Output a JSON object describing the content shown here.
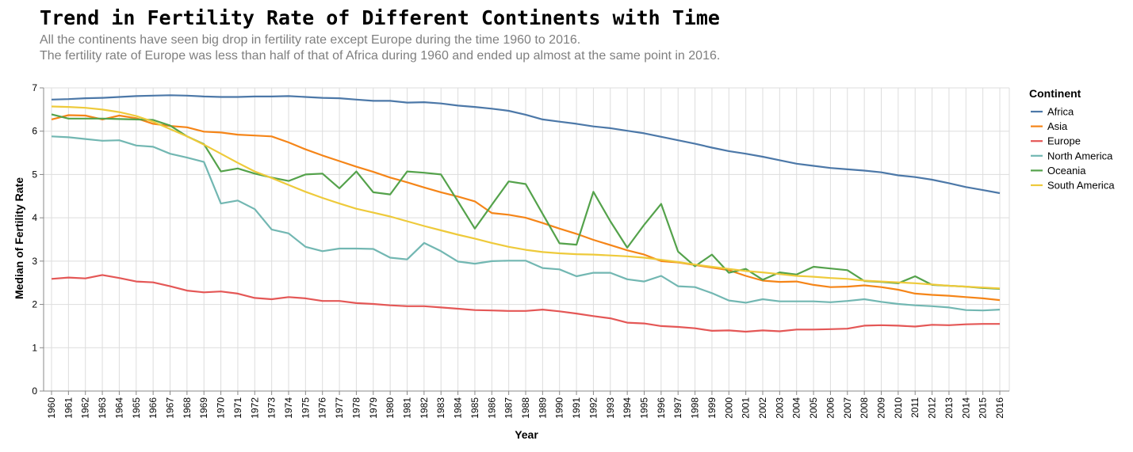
{
  "chart_data": {
    "type": "line",
    "title": "Trend in Fertility Rate of Different Continents with Time",
    "subtitle": [
      "All the continents have seen big drop in fertility rate except Europe during the time 1960 to 2016.",
      "The fertility rate of Europe was less than half of that of Africa during 1960 and ended up almost at the same point in 2016."
    ],
    "xlabel": "Year",
    "ylabel": "Median of Fertility Rate",
    "ylim": [
      0,
      7
    ],
    "yticks": [
      0,
      1,
      2,
      3,
      4,
      5,
      6,
      7
    ],
    "grid": true,
    "legend": {
      "title": "Continent",
      "position": "right"
    },
    "x": [
      1960,
      1961,
      1962,
      1963,
      1964,
      1965,
      1966,
      1967,
      1968,
      1969,
      1970,
      1971,
      1972,
      1973,
      1974,
      1975,
      1976,
      1977,
      1978,
      1979,
      1980,
      1981,
      1982,
      1983,
      1984,
      1985,
      1986,
      1987,
      1988,
      1989,
      1990,
      1991,
      1992,
      1993,
      1994,
      1995,
      1996,
      1997,
      1998,
      1999,
      2000,
      2001,
      2002,
      2003,
      2004,
      2005,
      2006,
      2007,
      2008,
      2009,
      2010,
      2011,
      2012,
      2013,
      2014,
      2015,
      2016
    ],
    "series": [
      {
        "name": "Africa",
        "color": "#4c78a8",
        "values": [
          6.73,
          6.74,
          6.76,
          6.77,
          6.79,
          6.81,
          6.82,
          6.83,
          6.82,
          6.8,
          6.79,
          6.79,
          6.8,
          6.8,
          6.81,
          6.79,
          6.77,
          6.76,
          6.73,
          6.7,
          6.7,
          6.66,
          6.67,
          6.64,
          6.59,
          6.56,
          6.52,
          6.47,
          6.38,
          6.27,
          6.22,
          6.17,
          6.11,
          6.07,
          6.01,
          5.95,
          5.87,
          5.79,
          5.71,
          5.62,
          5.54,
          5.48,
          5.41,
          5.33,
          5.25,
          5.2,
          5.15,
          5.12,
          5.09,
          5.05,
          4.98,
          4.94,
          4.88,
          4.8,
          4.71,
          4.64,
          4.57
        ]
      },
      {
        "name": "Asia",
        "color": "#f58518",
        "values": [
          6.27,
          6.37,
          6.36,
          6.27,
          6.36,
          6.3,
          6.17,
          6.12,
          6.09,
          5.99,
          5.97,
          5.92,
          5.9,
          5.88,
          5.74,
          5.58,
          5.44,
          5.31,
          5.18,
          5.06,
          4.93,
          4.82,
          4.7,
          4.59,
          4.49,
          4.38,
          4.11,
          4.07,
          4.0,
          3.88,
          3.75,
          3.63,
          3.49,
          3.37,
          3.25,
          3.15,
          3.0,
          2.97,
          2.91,
          2.85,
          2.79,
          2.66,
          2.55,
          2.52,
          2.53,
          2.45,
          2.4,
          2.41,
          2.44,
          2.4,
          2.34,
          2.25,
          2.22,
          2.2,
          2.17,
          2.14,
          2.1
        ]
      },
      {
        "name": "Europe",
        "color": "#e45756",
        "values": [
          2.59,
          2.62,
          2.6,
          2.68,
          2.61,
          2.53,
          2.51,
          2.42,
          2.32,
          2.28,
          2.3,
          2.25,
          2.15,
          2.12,
          2.17,
          2.14,
          2.08,
          2.08,
          2.03,
          2.01,
          1.98,
          1.96,
          1.96,
          1.93,
          1.9,
          1.87,
          1.86,
          1.85,
          1.85,
          1.88,
          1.84,
          1.79,
          1.73,
          1.68,
          1.58,
          1.56,
          1.5,
          1.48,
          1.45,
          1.39,
          1.4,
          1.37,
          1.4,
          1.38,
          1.42,
          1.42,
          1.43,
          1.44,
          1.51,
          1.52,
          1.51,
          1.49,
          1.53,
          1.52,
          1.54,
          1.55,
          1.55
        ]
      },
      {
        "name": "North America",
        "color": "#72b7b2",
        "values": [
          5.88,
          5.86,
          5.82,
          5.78,
          5.79,
          5.67,
          5.64,
          5.48,
          5.39,
          5.29,
          4.33,
          4.4,
          4.2,
          3.73,
          3.64,
          3.33,
          3.23,
          3.29,
          3.29,
          3.28,
          3.08,
          3.04,
          3.42,
          3.23,
          2.99,
          2.94,
          3.0,
          3.01,
          3.01,
          2.84,
          2.81,
          2.65,
          2.73,
          2.73,
          2.58,
          2.53,
          2.66,
          2.42,
          2.4,
          2.26,
          2.09,
          2.04,
          2.12,
          2.07,
          2.07,
          2.07,
          2.05,
          2.08,
          2.12,
          2.06,
          2.01,
          1.98,
          1.96,
          1.93,
          1.87,
          1.86,
          1.88
        ]
      },
      {
        "name": "Oceania",
        "color": "#54a24b",
        "values": [
          6.39,
          6.29,
          6.29,
          6.29,
          6.28,
          6.27,
          6.26,
          6.13,
          5.88,
          5.7,
          5.07,
          5.14,
          5.02,
          4.93,
          4.85,
          5.0,
          5.02,
          4.68,
          5.07,
          4.59,
          4.54,
          5.07,
          5.04,
          5.0,
          4.38,
          3.75,
          4.3,
          4.84,
          4.78,
          4.09,
          3.41,
          3.38,
          4.6,
          3.92,
          3.31,
          3.84,
          4.32,
          3.22,
          2.88,
          3.15,
          2.73,
          2.82,
          2.57,
          2.74,
          2.69,
          2.87,
          2.83,
          2.79,
          2.54,
          2.52,
          2.49,
          2.65,
          2.45,
          2.43,
          2.41,
          2.38,
          2.36
        ]
      },
      {
        "name": "South America",
        "color": "#eeca3b",
        "values": [
          6.57,
          6.56,
          6.54,
          6.5,
          6.44,
          6.35,
          6.22,
          6.05,
          5.88,
          5.69,
          5.48,
          5.27,
          5.07,
          4.92,
          4.76,
          4.6,
          4.46,
          4.33,
          4.21,
          4.12,
          4.03,
          3.92,
          3.81,
          3.71,
          3.61,
          3.52,
          3.42,
          3.33,
          3.26,
          3.21,
          3.18,
          3.16,
          3.15,
          3.13,
          3.11,
          3.08,
          3.03,
          2.98,
          2.92,
          2.87,
          2.82,
          2.77,
          2.74,
          2.7,
          2.66,
          2.64,
          2.61,
          2.59,
          2.55,
          2.53,
          2.51,
          2.49,
          2.46,
          2.43,
          2.41,
          2.39,
          2.37
        ]
      }
    ]
  }
}
